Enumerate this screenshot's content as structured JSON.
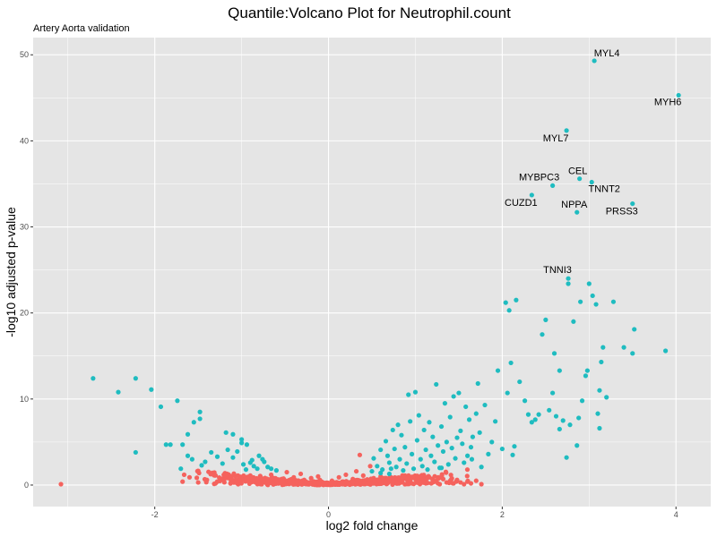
{
  "chart_data": {
    "type": "scatter",
    "title": "Quantile:Volcano Plot for Neutrophil.count",
    "subtitle": "Artery Aorta validation",
    "xlabel": "log2 fold change",
    "ylabel": "-log10 adjusted p-value",
    "xlim": [
      -3.4,
      4.4
    ],
    "ylim": [
      -2.5,
      52
    ],
    "x_ticks": [
      -2,
      0,
      2,
      4
    ],
    "y_ticks": [
      0,
      10,
      20,
      30,
      40,
      50
    ],
    "x_tick_labels": [
      "-2",
      "0",
      "2",
      "4"
    ],
    "y_tick_labels": [
      "0",
      "10",
      "20",
      "30",
      "40",
      "50"
    ],
    "grid": true,
    "legend": "none",
    "colors": {
      "significant": "#1fbcc0",
      "not_significant": "#f5625d",
      "panel_background": "#e5e5e5",
      "grid": "#ffffff"
    },
    "labeled_points": [
      {
        "gene": "MYL4",
        "x": 3.06,
        "y": 49.3
      },
      {
        "gene": "MYH6",
        "x": 4.03,
        "y": 45.3
      },
      {
        "gene": "MYL7",
        "x": 2.74,
        "y": 41.2
      },
      {
        "gene": "CEL",
        "x": 2.89,
        "y": 35.6
      },
      {
        "gene": "TNNT2",
        "x": 3.03,
        "y": 35.2
      },
      {
        "gene": "MYBPC3",
        "x": 2.58,
        "y": 34.8
      },
      {
        "gene": "CUZD1",
        "x": 2.34,
        "y": 33.7
      },
      {
        "gene": "PRSS3",
        "x": 3.5,
        "y": 32.7
      },
      {
        "gene": "NPPA",
        "x": 2.86,
        "y": 31.7
      },
      {
        "gene": "TNNI3",
        "x": 2.76,
        "y": 24.0
      }
    ],
    "significant_points": [
      [
        -2.71,
        12.4
      ],
      [
        -2.42,
        10.8
      ],
      [
        -2.22,
        12.4
      ],
      [
        -2.22,
        3.8
      ],
      [
        -2.04,
        11.1
      ],
      [
        -1.93,
        9.1
      ],
      [
        -1.87,
        4.7
      ],
      [
        -1.82,
        4.7
      ],
      [
        -1.74,
        9.8
      ],
      [
        -1.68,
        4.7
      ],
      [
        -1.62,
        5.9
      ],
      [
        -1.55,
        7.3
      ],
      [
        -1.48,
        8.5
      ],
      [
        -1.48,
        7.7
      ],
      [
        -1.42,
        2.7
      ],
      [
        -1.35,
        3.8
      ],
      [
        -1.28,
        3.3
      ],
      [
        -1.22,
        2.5
      ],
      [
        -1.16,
        4.1
      ],
      [
        -1.1,
        3.2
      ],
      [
        -1.05,
        3.9
      ],
      [
        -1.0,
        5.3
      ],
      [
        -0.94,
        4.7
      ],
      [
        -0.9,
        2.6
      ],
      [
        -0.86,
        2.2
      ],
      [
        -0.8,
        3.4
      ],
      [
        -0.74,
        2.7
      ],
      [
        -0.7,
        2.1
      ],
      [
        -0.66,
        1.9
      ],
      [
        -0.6,
        1.7
      ],
      [
        -1.18,
        6.1
      ],
      [
        -1.1,
        5.9
      ],
      [
        -1.0,
        4.9
      ],
      [
        -0.95,
        1.8
      ],
      [
        -0.82,
        1.9
      ],
      [
        -0.76,
        3.0
      ],
      [
        -1.62,
        3.4
      ],
      [
        -1.7,
        1.9
      ],
      [
        -1.57,
        3.0
      ],
      [
        -1.46,
        2.3
      ],
      [
        -0.88,
        2.9
      ],
      [
        -0.98,
        2.4
      ],
      [
        0.5,
        1.6
      ],
      [
        0.52,
        3.1
      ],
      [
        0.56,
        2.2
      ],
      [
        0.6,
        4.1
      ],
      [
        0.62,
        1.8
      ],
      [
        0.66,
        5.1
      ],
      [
        0.68,
        3.4
      ],
      [
        0.7,
        2.6
      ],
      [
        0.72,
        1.9
      ],
      [
        0.74,
        6.4
      ],
      [
        0.76,
        4.2
      ],
      [
        0.78,
        2.1
      ],
      [
        0.8,
        7.0
      ],
      [
        0.82,
        3.0
      ],
      [
        0.84,
        5.8
      ],
      [
        0.86,
        1.7
      ],
      [
        0.88,
        4.4
      ],
      [
        0.9,
        2.5
      ],
      [
        0.92,
        10.5
      ],
      [
        0.94,
        7.4
      ],
      [
        0.96,
        3.6
      ],
      [
        0.98,
        1.9
      ],
      [
        1.0,
        10.8
      ],
      [
        1.02,
        5.2
      ],
      [
        1.04,
        8.1
      ],
      [
        1.06,
        3.0
      ],
      [
        1.08,
        2.2
      ],
      [
        1.1,
        6.4
      ],
      [
        1.12,
        4.1
      ],
      [
        1.14,
        1.8
      ],
      [
        1.16,
        7.3
      ],
      [
        1.18,
        3.4
      ],
      [
        1.2,
        5.6
      ],
      [
        1.22,
        2.7
      ],
      [
        1.24,
        11.7
      ],
      [
        1.26,
        4.6
      ],
      [
        1.28,
        2.0
      ],
      [
        1.3,
        6.8
      ],
      [
        1.32,
        3.9
      ],
      [
        1.34,
        9.5
      ],
      [
        1.36,
        5.0
      ],
      [
        1.38,
        2.4
      ],
      [
        1.4,
        7.9
      ],
      [
        1.42,
        4.3
      ],
      [
        1.44,
        10.3
      ],
      [
        1.46,
        3.1
      ],
      [
        1.48,
        5.5
      ],
      [
        1.5,
        10.7
      ],
      [
        1.52,
        6.3
      ],
      [
        1.54,
        4.8
      ],
      [
        1.56,
        2.6
      ],
      [
        1.58,
        9.1
      ],
      [
        1.6,
        3.4
      ],
      [
        1.62,
        7.6
      ],
      [
        1.64,
        4.4
      ],
      [
        1.66,
        5.6
      ],
      [
        1.7,
        8.3
      ],
      [
        1.72,
        11.8
      ],
      [
        1.74,
        6.1
      ],
      [
        1.76,
        2.1
      ],
      [
        1.8,
        9.3
      ],
      [
        1.84,
        3.6
      ],
      [
        1.88,
        5.0
      ],
      [
        1.92,
        7.4
      ],
      [
        1.95,
        13.3
      ],
      [
        2.0,
        4.2
      ],
      [
        2.04,
        21.2
      ],
      [
        2.06,
        10.7
      ],
      [
        2.08,
        20.3
      ],
      [
        2.1,
        14.2
      ],
      [
        2.12,
        3.5
      ],
      [
        2.16,
        21.5
      ],
      [
        2.14,
        4.5
      ],
      [
        2.2,
        12.0
      ],
      [
        2.26,
        9.8
      ],
      [
        2.3,
        8.2
      ],
      [
        2.34,
        7.3
      ],
      [
        2.38,
        7.6
      ],
      [
        2.42,
        8.2
      ],
      [
        2.46,
        17.5
      ],
      [
        2.5,
        19.2
      ],
      [
        2.54,
        8.7
      ],
      [
        2.58,
        10.7
      ],
      [
        2.62,
        8.0
      ],
      [
        2.66,
        13.3
      ],
      [
        2.7,
        7.5
      ],
      [
        2.74,
        3.2
      ],
      [
        2.76,
        23.4
      ],
      [
        2.82,
        19.0
      ],
      [
        2.86,
        4.6
      ],
      [
        2.9,
        21.3
      ],
      [
        2.92,
        9.8
      ],
      [
        2.96,
        12.7
      ],
      [
        2.98,
        13.3
      ],
      [
        3.0,
        23.4
      ],
      [
        3.04,
        22.0
      ],
      [
        3.08,
        21.0
      ],
      [
        3.12,
        11.0
      ],
      [
        3.14,
        14.3
      ],
      [
        3.16,
        16.0
      ],
      [
        3.2,
        10.2
      ],
      [
        3.28,
        21.3
      ],
      [
        3.4,
        16.0
      ],
      [
        3.5,
        15.3
      ],
      [
        3.52,
        18.1
      ],
      [
        3.88,
        15.6
      ],
      [
        2.6,
        15.3
      ],
      [
        2.78,
        7.0
      ],
      [
        3.1,
        8.3
      ],
      [
        3.12,
        6.6
      ],
      [
        2.66,
        6.5
      ],
      [
        2.88,
        7.8
      ],
      [
        1.65,
        3.0
      ],
      [
        1.3,
        2.0
      ],
      [
        0.6,
        1.4
      ],
      [
        0.7,
        1.3
      ]
    ],
    "insignificant_points": [
      [
        -3.08,
        0.1
      ],
      [
        -1.68,
        0.4
      ],
      [
        -1.6,
        0.9
      ],
      [
        -1.5,
        0.3
      ],
      [
        -1.4,
        0.6
      ],
      [
        -1.3,
        0.2
      ],
      [
        -1.2,
        0.8
      ],
      [
        -1.12,
        0.4
      ],
      [
        -1.04,
        0.1
      ],
      [
        -0.96,
        0.6
      ],
      [
        -0.9,
        1.1
      ],
      [
        -0.84,
        0.3
      ],
      [
        -0.78,
        0.9
      ],
      [
        -0.72,
        0.5
      ],
      [
        -0.66,
        1.2
      ],
      [
        -0.6,
        0.2
      ],
      [
        -0.54,
        0.7
      ],
      [
        -0.48,
        1.5
      ],
      [
        -0.44,
        0.4
      ],
      [
        -0.4,
        0.9
      ],
      [
        -0.36,
        0.2
      ],
      [
        -0.32,
        1.3
      ],
      [
        -0.28,
        0.6
      ],
      [
        -0.24,
        0.1
      ],
      [
        -0.2,
        0.8
      ],
      [
        -0.16,
        0.3
      ],
      [
        -0.12,
        1.0
      ],
      [
        -0.08,
        0.4
      ],
      [
        -0.04,
        0.2
      ],
      [
        0.0,
        0.1
      ],
      [
        0.04,
        0.5
      ],
      [
        0.08,
        0.2
      ],
      [
        0.12,
        0.9
      ],
      [
        0.16,
        0.4
      ],
      [
        0.2,
        1.2
      ],
      [
        0.24,
        0.3
      ],
      [
        0.28,
        0.7
      ],
      [
        0.32,
        1.6
      ],
      [
        0.36,
        0.5
      ],
      [
        0.4,
        1.1
      ],
      [
        0.44,
        0.2
      ],
      [
        0.48,
        2.2
      ],
      [
        0.52,
        0.8
      ],
      [
        0.56,
        0.3
      ],
      [
        0.6,
        1.0
      ],
      [
        0.64,
        0.5
      ],
      [
        0.68,
        0.2
      ],
      [
        0.72,
        0.9
      ],
      [
        0.76,
        0.4
      ],
      [
        0.8,
        0.7
      ],
      [
        0.84,
        0.3
      ],
      [
        0.88,
        1.1
      ],
      [
        0.92,
        0.5
      ],
      [
        0.96,
        0.2
      ],
      [
        1.0,
        0.8
      ],
      [
        1.04,
        0.4
      ],
      [
        1.08,
        0.6
      ],
      [
        1.12,
        0.2
      ],
      [
        1.16,
        0.9
      ],
      [
        1.2,
        0.3
      ],
      [
        1.24,
        0.5
      ],
      [
        1.28,
        0.1
      ],
      [
        1.32,
        0.7
      ],
      [
        1.36,
        0.3
      ],
      [
        1.4,
        0.5
      ],
      [
        1.44,
        0.2
      ],
      [
        1.48,
        0.6
      ],
      [
        1.52,
        0.3
      ],
      [
        1.56,
        0.1
      ],
      [
        1.6,
        0.4
      ],
      [
        1.64,
        0.2
      ],
      [
        1.7,
        0.5
      ],
      [
        1.76,
        0.1
      ],
      [
        0.36,
        3.5
      ],
      [
        -0.5,
        0.3
      ],
      [
        -0.3,
        0.5
      ],
      [
        0.2,
        0.1
      ],
      [
        0.3,
        0.3
      ],
      [
        -0.1,
        0.6
      ],
      [
        0.1,
        0.3
      ],
      [
        -0.2,
        0.2
      ],
      [
        -0.6,
        0.5
      ],
      [
        0.45,
        0.6
      ],
      [
        0.65,
        0.8
      ]
    ]
  }
}
